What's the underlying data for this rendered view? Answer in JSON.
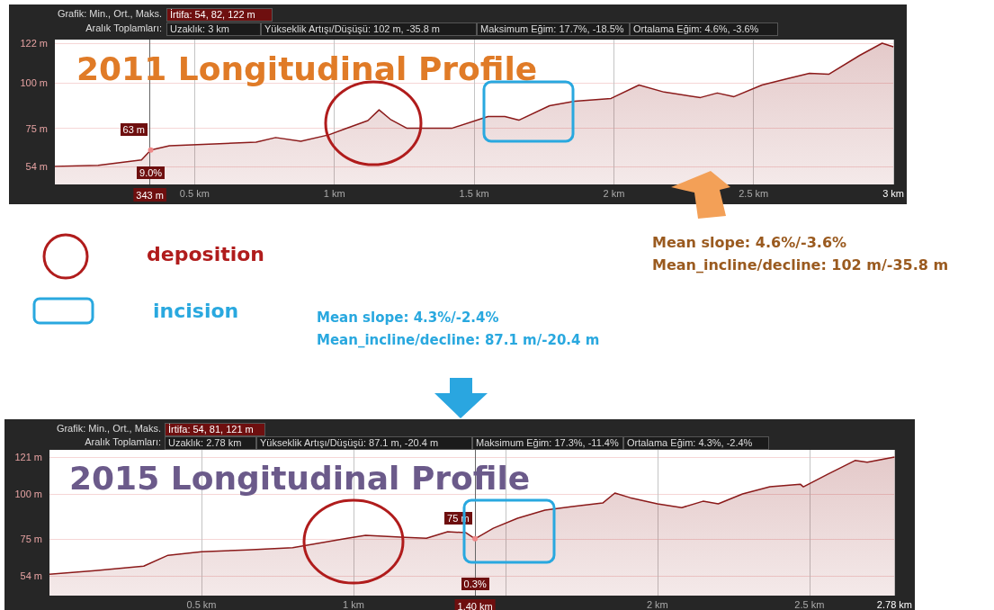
{
  "chart_data": [
    {
      "type": "area",
      "title": "2011 Longitudinal Profile",
      "color": "#8b1a1a",
      "grid": true,
      "x": [
        0,
        0.155,
        0.31,
        0.343,
        0.41,
        0.57,
        0.72,
        0.79,
        0.88,
        0.98,
        1.04,
        1.12,
        1.16,
        1.2,
        1.26,
        1.42,
        1.55,
        1.61,
        1.66,
        1.77,
        1.86,
        1.99,
        2.09,
        2.18,
        2.31,
        2.37,
        2.43,
        2.53,
        2.62,
        2.7,
        2.77,
        2.88,
        2.96,
        3
      ],
      "values": [
        54,
        54.5,
        57.5,
        63,
        65.4,
        66.4,
        67.4,
        69.9,
        67.9,
        71.4,
        74.8,
        79.3,
        85.2,
        80,
        75,
        75,
        81.5,
        81.5,
        79.5,
        87.5,
        90,
        91.5,
        98.9,
        95,
        92,
        94.5,
        92.5,
        98.9,
        102.4,
        105.4,
        104.9,
        115.3,
        122,
        120
      ],
      "xlim": [
        0,
        3
      ],
      "ylim": [
        44,
        124
      ],
      "xticks": [
        {
          "value": 0.5,
          "label": "0.5 km"
        },
        {
          "value": 1,
          "label": "1 km"
        },
        {
          "value": 1.5,
          "label": "1.5 km"
        },
        {
          "value": 2,
          "label": "2 km"
        },
        {
          "value": 2.5,
          "label": "2.5 km"
        },
        {
          "value": 3,
          "label": "3 km"
        }
      ],
      "yticks": [
        {
          "value": 54,
          "label": "54 m"
        },
        {
          "value": 75,
          "label": "75 m"
        },
        {
          "value": 100,
          "label": "100 m"
        },
        {
          "value": 122,
          "label": "122 m"
        }
      ],
      "ref_lines": [
        {
          "axis": "x",
          "value": 0.343,
          "label": "343 m"
        }
      ],
      "annotations": [
        "Grafik: Min., Ort., Maks.",
        "İrtifa: 54, 82, 122 m",
        "Aralık Toplamları:",
        "Uzaklık: 3 km",
        "Yükseklik Artışı/Düşüşü: 102 m, -35.8 m",
        "Maksimum Eğim: 17.7%, -18.5%",
        "Ortalama Eğim: 4.6%, -3.6%",
        "9.0%",
        "Mean slope: 4.6%/-3.6%",
        "Mean_incline/decline: 102 m/-35.8 m",
        "deposition",
        "incision",
        {
          "text": "63 m",
          "x": 0.343,
          "y": 63
        }
      ]
    },
    {
      "type": "area",
      "title": "2015 Longitudinal Profile",
      "color": "#8b1a1a",
      "grid": true,
      "x": [
        0,
        0.15,
        0.31,
        0.39,
        0.5,
        0.65,
        0.8,
        0.98,
        1.04,
        1.17,
        1.24,
        1.31,
        1.37,
        1.4,
        1.46,
        1.54,
        1.63,
        1.72,
        1.82,
        1.86,
        1.91,
        2,
        2.08,
        2.15,
        2.2,
        2.28,
        2.37,
        2.47,
        2.48,
        2.56,
        2.65,
        2.69,
        2.78
      ],
      "values": [
        55,
        57,
        59.6,
        65.7,
        67.7,
        68.7,
        70,
        75.3,
        76.9,
        75.8,
        75.3,
        78.9,
        78.4,
        75,
        80.9,
        86.5,
        91.1,
        93.1,
        95.1,
        100.7,
        98.1,
        94.6,
        92.5,
        96.1,
        94.6,
        100.2,
        104.2,
        105.7,
        104.2,
        111.3,
        119,
        118,
        121
      ],
      "xlim": [
        0,
        2.78
      ],
      "ylim": [
        43,
        125
      ],
      "xticks": [
        {
          "value": 0.5,
          "label": "0.5 km"
        },
        {
          "value": 1,
          "label": "1 km"
        },
        {
          "value": 1.5,
          "label": null
        },
        {
          "value": 2,
          "label": "2 km"
        },
        {
          "value": 2.5,
          "label": "2.5 km"
        },
        {
          "value": 2.78,
          "label": "2.78 km"
        }
      ],
      "yticks": [
        {
          "value": 54,
          "label": "54 m"
        },
        {
          "value": 75,
          "label": "75 m"
        },
        {
          "value": 100,
          "label": "100 m"
        },
        {
          "value": 121,
          "label": "121 m"
        }
      ],
      "ref_lines": [
        {
          "axis": "x",
          "value": 1.4,
          "label": "1.40 km"
        }
      ],
      "annotations": [
        "Grafik: Min., Ort., Maks.",
        "İrtifa: 54, 81, 121 m",
        "Aralık Toplamları:",
        "Uzaklık: 2.78 km",
        "Yükseklik Artışı/Düşüşü: 87.1 m, -20.4 m",
        "Maksimum Eğim: 17.3%, -11.4%",
        "Ortalama Eğim: 4.3%, -2.4%",
        "0.3%",
        "Mean slope: 4.3%/-2.4%",
        "Mean_incline/decline: 87.1 m/-20.4 m",
        {
          "text": "75 m",
          "x": 1.4,
          "y": 75
        }
      ]
    }
  ]
}
